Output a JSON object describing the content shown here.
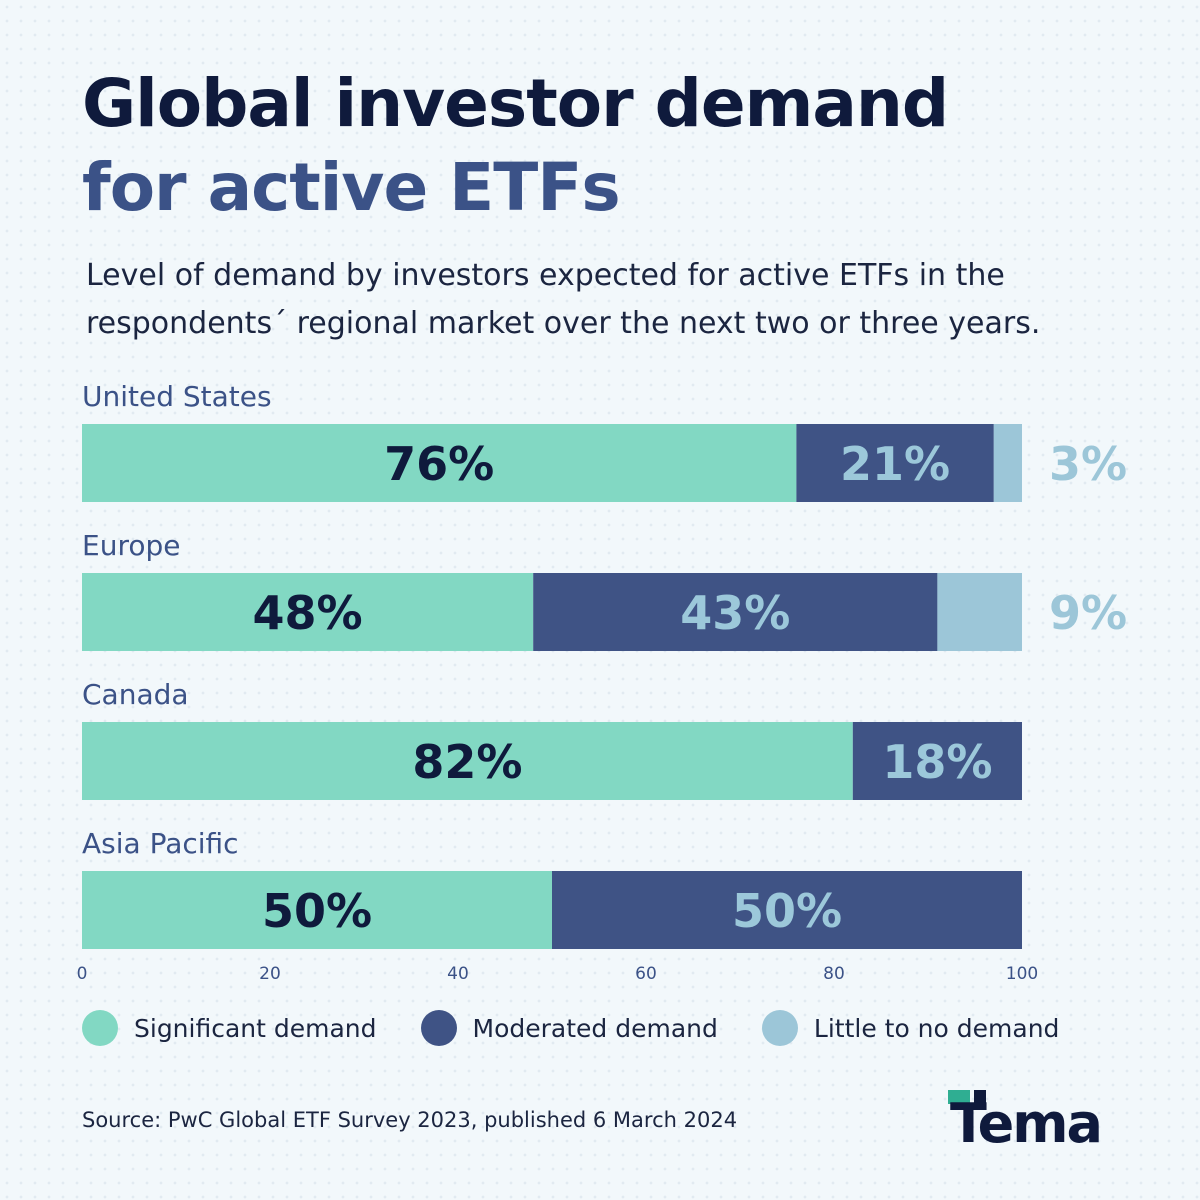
{
  "header": {
    "title_line1": "Global investor demand",
    "title_line2": "for active ETFs",
    "subtitle": "Level of demand by investors expected for active ETFs in the respondents´ regional market over the next two or three years."
  },
  "chart_data": {
    "type": "bar",
    "orientation": "horizontal",
    "stacked": true,
    "categories": [
      "United States",
      "Europe",
      "Canada",
      "Asia Pacific"
    ],
    "series": [
      {
        "name": "Significant demand",
        "values": [
          76,
          48,
          82,
          50
        ],
        "color": "#82d8c3",
        "label_color": "#0f1a3c"
      },
      {
        "name": "Moderated demand",
        "values": [
          21,
          43,
          18,
          50
        ],
        "color": "#3f5385",
        "label_color": "#9cc8da"
      },
      {
        "name": "Little to no demand",
        "values": [
          3,
          9,
          0,
          0
        ],
        "color": "#9cc6d8",
        "label_color": "#9cc6d8"
      }
    ],
    "value_suffix": "%",
    "xlim": [
      0,
      100
    ],
    "xticks": [
      0,
      20,
      40,
      60,
      80,
      100
    ],
    "grid": false,
    "legend_position": "bottom"
  },
  "legend": {
    "items": [
      {
        "label": "Significant demand",
        "color": "#82d8c3"
      },
      {
        "label": "Moderated demand",
        "color": "#3f5385"
      },
      {
        "label": "Little to no demand",
        "color": "#9cc6d8"
      }
    ]
  },
  "footer": {
    "source": "Source: PwC Global ETF Survey 2023, published 6 March 2024",
    "logo_text": "Tema"
  },
  "colors": {
    "title_dark": "#0f1a3c",
    "title_blue": "#3b5287",
    "background": "#f2f8fb"
  }
}
